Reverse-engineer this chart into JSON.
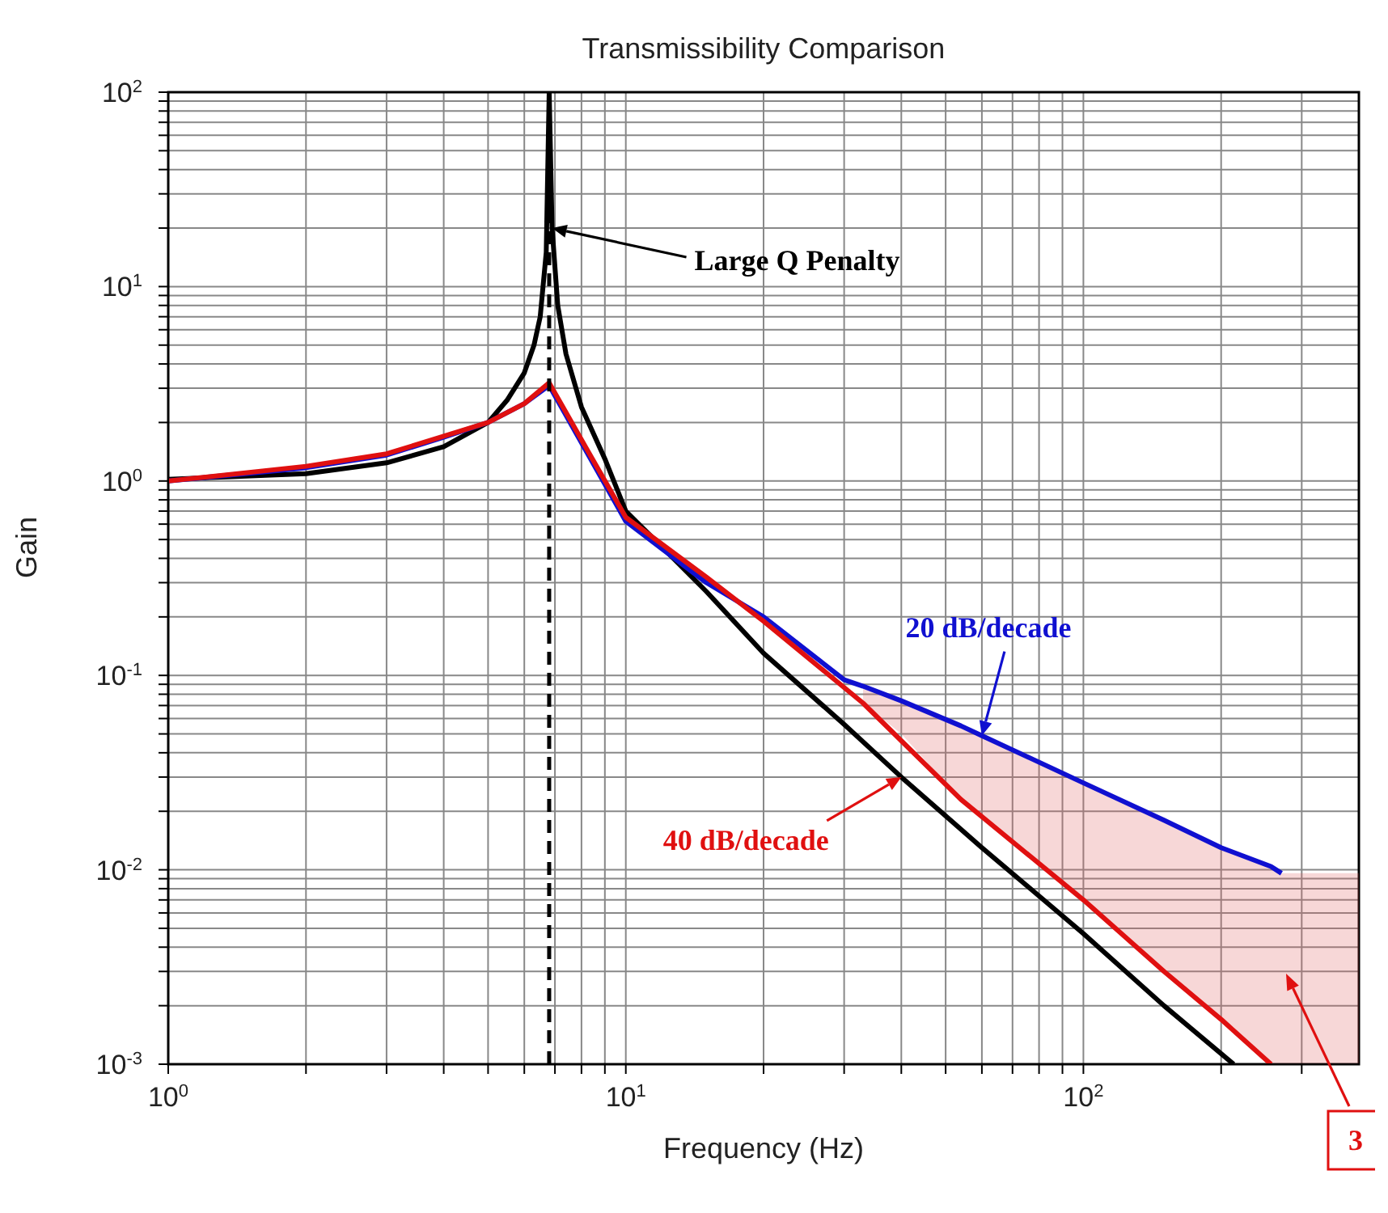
{
  "chart_data": {
    "type": "line",
    "title": "Transmissibility Comparison",
    "xlabel": "Frequency (Hz)",
    "ylabel": "Gain",
    "log": "xy",
    "grid": true,
    "marker": "none",
    "xlim": [
      1,
      400
    ],
    "xticks": [
      {
        "value": 1,
        "label": "10$^{0}$"
      },
      {
        "value": 2,
        "label": null
      },
      {
        "value": 3,
        "label": null
      },
      {
        "value": 4,
        "label": null
      },
      {
        "value": 5,
        "label": null
      },
      {
        "value": 6,
        "label": null
      },
      {
        "value": 7,
        "label": null
      },
      {
        "value": 8,
        "label": null
      },
      {
        "value": 9,
        "label": null
      },
      {
        "value": 10,
        "label": "10$^{1}$"
      },
      {
        "value": 20,
        "label": null
      },
      {
        "value": 30,
        "label": null
      },
      {
        "value": 40,
        "label": null
      },
      {
        "value": 50,
        "label": null
      },
      {
        "value": 60,
        "label": null
      },
      {
        "value": 70,
        "label": null
      },
      {
        "value": 80,
        "label": null
      },
      {
        "value": 90,
        "label": null
      },
      {
        "value": 100,
        "label": "10$^{2}$"
      },
      {
        "value": 200,
        "label": null
      },
      {
        "value": 300,
        "label": null
      }
    ],
    "ylim": [
      0.001,
      100
    ],
    "yticks": [
      {
        "value": 0.001,
        "label": "10$^{-3}$"
      },
      {
        "value": 0.002,
        "label": null
      },
      {
        "value": 0.003,
        "label": null
      },
      {
        "value": 0.004,
        "label": null
      },
      {
        "value": 0.005,
        "label": null
      },
      {
        "value": 0.006,
        "label": null
      },
      {
        "value": 0.007,
        "label": null
      },
      {
        "value": 0.008,
        "label": null
      },
      {
        "value": 0.009,
        "label": null
      },
      {
        "value": 0.01,
        "label": "10$^{-2}$"
      },
      {
        "value": 0.02,
        "label": null
      },
      {
        "value": 0.03,
        "label": null
      },
      {
        "value": 0.04,
        "label": null
      },
      {
        "value": 0.05,
        "label": null
      },
      {
        "value": 0.06,
        "label": null
      },
      {
        "value": 0.07,
        "label": null
      },
      {
        "value": 0.08,
        "label": null
      },
      {
        "value": 0.09,
        "label": null
      },
      {
        "value": 0.1,
        "label": "10$^{-1}$"
      },
      {
        "value": 0.2,
        "label": null
      },
      {
        "value": 0.3,
        "label": null
      },
      {
        "value": 0.4,
        "label": null
      },
      {
        "value": 0.5,
        "label": null
      },
      {
        "value": 0.6,
        "label": null
      },
      {
        "value": 0.7,
        "label": null
      },
      {
        "value": 0.8,
        "label": null
      },
      {
        "value": 0.9,
        "label": null
      },
      {
        "value": 1,
        "label": "10$^{0}$"
      },
      {
        "value": 2,
        "label": null
      },
      {
        "value": 3,
        "label": null
      },
      {
        "value": 4,
        "label": null
      },
      {
        "value": 5,
        "label": null
      },
      {
        "value": 6,
        "label": null
      },
      {
        "value": 7,
        "label": null
      },
      {
        "value": 8,
        "label": null
      },
      {
        "value": 9,
        "label": null
      },
      {
        "value": 10,
        "label": "10$^{1}$"
      },
      {
        "value": 20,
        "label": null
      },
      {
        "value": 30,
        "label": null
      },
      {
        "value": 40,
        "label": null
      },
      {
        "value": 50,
        "label": null
      },
      {
        "value": 60,
        "label": null
      },
      {
        "value": 70,
        "label": null
      },
      {
        "value": 80,
        "label": null
      },
      {
        "value": 90,
        "label": null
      },
      {
        "value": 100,
        "label": "10$^{2}$"
      }
    ],
    "series": [
      {
        "color": "#000000",
        "x": [
          1,
          2,
          3,
          4,
          5,
          5.5,
          6,
          6.3,
          6.5,
          6.7,
          6.8,
          6.9,
          7.1,
          7.4,
          8,
          9,
          10,
          12.7,
          15,
          20,
          30,
          40,
          60,
          100,
          150,
          213
        ],
        "values": [
          1.02,
          1.09,
          1.24,
          1.5,
          2.0,
          2.6,
          3.6,
          5,
          7,
          15,
          100,
          20,
          8,
          4.5,
          2.4,
          1.3,
          0.7,
          0.4,
          0.27,
          0.13,
          0.056,
          0.03,
          0.013,
          0.0047,
          0.002,
          0.001
        ]
      },
      {
        "color": "#1010d0",
        "x": [
          1,
          2,
          3,
          4,
          5,
          6,
          6.8,
          8.3,
          10,
          15,
          20,
          30,
          33,
          40,
          54,
          60,
          100,
          150,
          200,
          257,
          271,
          400
        ],
        "values": [
          1.0,
          1.17,
          1.36,
          1.68,
          2.0,
          2.5,
          3.1,
          1.35,
          0.62,
          0.3,
          0.2,
          0.095,
          0.088,
          0.074,
          0.055,
          0.049,
          0.028,
          0.018,
          0.013,
          0.0104,
          0.0096,
          null
        ],
        "lower": [
          null,
          null,
          null,
          null,
          null,
          null,
          null,
          null,
          null,
          null,
          null,
          null,
          0.072,
          0.05,
          0.023,
          0.019,
          0.007,
          0.003,
          0.0017,
          0.001,
          0.001,
          0.001
        ],
        "upper": [
          null,
          null,
          null,
          null,
          null,
          null,
          null,
          null,
          null,
          null,
          null,
          null,
          0.088,
          0.074,
          0.055,
          0.049,
          0.028,
          0.018,
          0.013,
          0.0104,
          0.0096,
          0.0096
        ]
      },
      {
        "color": "#e01010",
        "x": [
          1,
          2,
          3,
          4,
          5,
          6,
          6.8,
          8.3,
          10,
          15,
          20,
          33,
          54,
          100,
          150,
          200,
          257
        ],
        "values": [
          1.0,
          1.19,
          1.38,
          1.7,
          2.0,
          2.5,
          3.2,
          1.4,
          0.65,
          0.32,
          0.19,
          0.072,
          0.023,
          0.007,
          0.003,
          0.0017,
          0.001
        ]
      }
    ],
    "ref_lines": [
      {
        "axis": "x",
        "value": 6.8,
        "label": null,
        "color": "#000000",
        "line_style": "dashed"
      }
    ],
    "annotations": [
      {
        "text": "Large Q Penalty",
        "x": 6.9,
        "y": 20
      },
      {
        "text": "20 dB/decade",
        "x": 60,
        "y": 0.049
      },
      {
        "text": "40 dB/decade",
        "x": 40,
        "y": 0.03
      },
      "3"
    ]
  }
}
